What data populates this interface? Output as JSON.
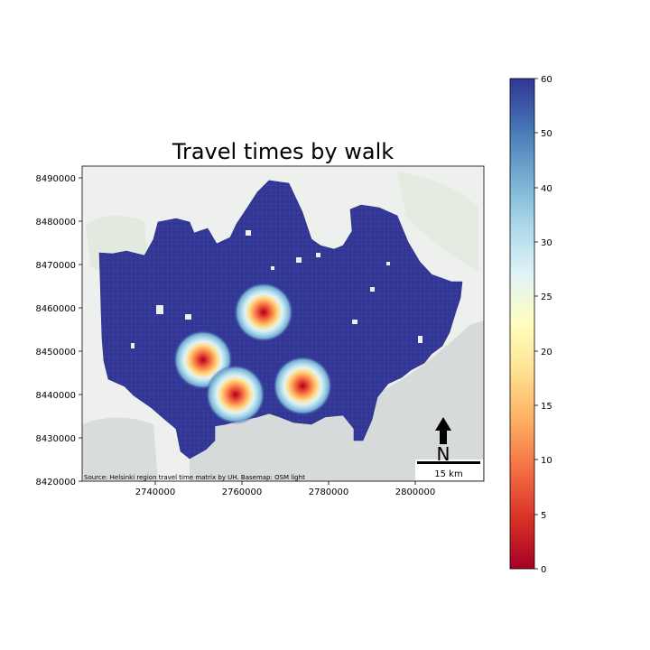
{
  "map": {
    "title": "Travel times by walk",
    "attribution": "Source: Helsinki region travel time matrix by UH. Basemap: OSM light",
    "scale_bar_label": "15 km",
    "north_label": "N",
    "x_ticks": [
      "2740000",
      "2760000",
      "2780000",
      "2800000"
    ],
    "y_ticks": [
      "8490000",
      "8480000",
      "8470000",
      "8460000",
      "8450000",
      "8440000",
      "8430000",
      "8420000"
    ],
    "grid_color": "#313695",
    "hotspots": [
      {
        "x": 2765000,
        "y": 8459000
      },
      {
        "x": 2751000,
        "y": 8448000
      },
      {
        "x": 2758500,
        "y": 8440000
      },
      {
        "x": 2774000,
        "y": 8442000
      }
    ]
  },
  "colorbar": {
    "ticks": [
      "60",
      "50",
      "40",
      "30",
      "25",
      "20",
      "15",
      "10",
      "5",
      "0"
    ],
    "colormap": "RdYlBu",
    "min": 0,
    "max": 60
  }
}
